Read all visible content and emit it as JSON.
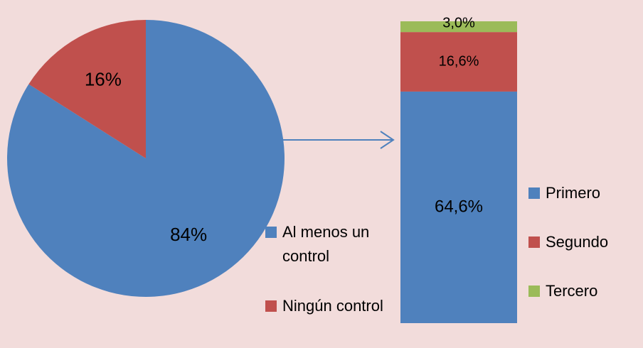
{
  "chart_data": [
    {
      "type": "pie",
      "categories": [
        "Al menos un control",
        "Ningún control"
      ],
      "values": [
        84,
        16
      ],
      "value_labels": [
        "84%",
        "16%"
      ],
      "colors": [
        "#4f81bd",
        "#c0504d"
      ]
    },
    {
      "type": "stacked-bar",
      "categories": [
        null
      ],
      "series": [
        {
          "name": "Primero",
          "color": "#4f81bd",
          "values": [
            64.6
          ],
          "value_labels": [
            "64,6%"
          ]
        },
        {
          "name": "Segundo",
          "color": "#c0504d",
          "values": [
            16.6
          ],
          "value_labels": [
            "16,6%"
          ]
        },
        {
          "name": "Tercero",
          "color": "#9bbb59",
          "values": [
            3.0
          ],
          "value_labels": [
            "3,0%"
          ]
        }
      ]
    }
  ]
}
